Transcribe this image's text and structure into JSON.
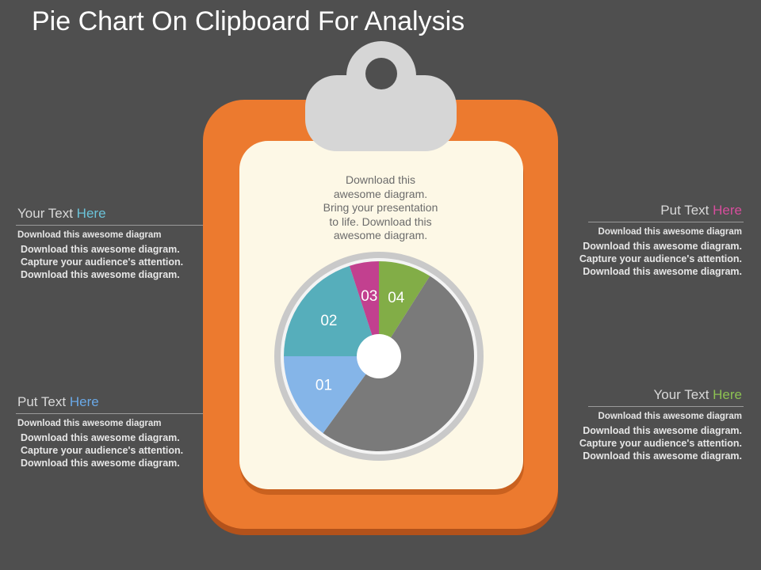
{
  "title": "Pie Chart On Clipboard For Analysis",
  "center_text": [
    "Download this",
    "awesome diagram.",
    "Bring your presentation",
    "to life. Download this",
    "awesome diagram."
  ],
  "blocks": [
    {
      "id": "top-left",
      "heading_main": "Your Text ",
      "heading_accent": "Here",
      "accent_color": "#6bc3d9",
      "sub": "Download  this awesome diagram",
      "body": [
        "Download this  awesome diagram.",
        "Capture your audience's attention.",
        "Download this  awesome diagram."
      ]
    },
    {
      "id": "bottom-left",
      "heading_main": "Put Text ",
      "heading_accent": "Here",
      "accent_color": "#6aa8e6",
      "sub": "Download  this awesome diagram",
      "body": [
        "Download this  awesome diagram.",
        "Capture your audience's attention.",
        "Download this  awesome diagram."
      ]
    },
    {
      "id": "top-right",
      "heading_main": "Put Text ",
      "heading_accent": "Here",
      "accent_color": "#d64d9c",
      "sub": "Download  this awesome diagram",
      "body": [
        "Download this  awesome diagram.",
        "Capture your audience's attention.",
        "Download this  awesome diagram."
      ]
    },
    {
      "id": "bottom-right",
      "heading_main": "Your Text ",
      "heading_accent": "Here",
      "accent_color": "#8cc152",
      "sub": "Download  this awesome diagram",
      "body": [
        "Download this  awesome diagram.",
        "Capture your audience's attention.",
        "Download this  awesome diagram."
      ]
    }
  ],
  "chart_data": {
    "type": "pie",
    "style": "donut",
    "slices": [
      {
        "label": "01",
        "value": 15,
        "color": "#85b5e8"
      },
      {
        "label": "02",
        "value": 20,
        "color": "#56aebb"
      },
      {
        "label": "03",
        "value": 5,
        "color": "#c2408f"
      },
      {
        "label": "04",
        "value": 9,
        "color": "#82ad47"
      },
      {
        "label": "",
        "value": 51,
        "color": "#7a7a7a"
      }
    ]
  },
  "colors": {
    "background": "#4f4f4f",
    "clipboard": "#ec7a2f",
    "clipboard_shadow": "#b3521b",
    "paper": "#fdf8e6",
    "clip": "#d6d6d6"
  }
}
